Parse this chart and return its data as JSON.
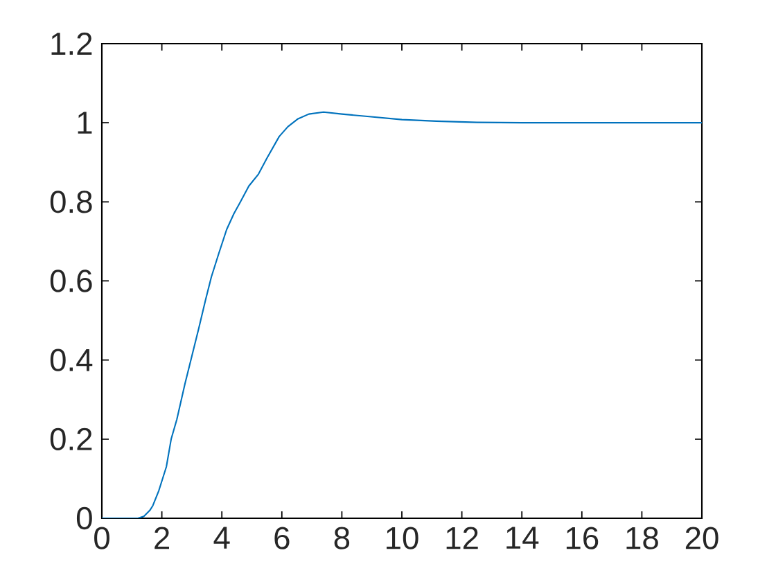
{
  "chart_data": {
    "type": "line",
    "x": [
      0,
      0.5,
      1.0,
      1.2,
      1.4,
      1.6,
      1.7,
      1.9,
      2.15,
      2.31,
      2.5,
      2.77,
      3.0,
      3.23,
      3.45,
      3.65,
      3.9,
      4.16,
      4.4,
      4.62,
      4.9,
      5.22,
      5.5,
      5.91,
      6.2,
      6.54,
      6.9,
      7.39,
      8.0,
      8.85,
      10.0,
      11.15,
      12.5,
      14,
      16,
      18,
      20
    ],
    "values": [
      0,
      0,
      0,
      0,
      0.005,
      0.02,
      0.032,
      0.07,
      0.13,
      0.2,
      0.25,
      0.34,
      0.41,
      0.48,
      0.55,
      0.61,
      0.67,
      0.73,
      0.77,
      0.8,
      0.84,
      0.87,
      0.91,
      0.965,
      0.99,
      1.01,
      1.022,
      1.027,
      1.022,
      1.016,
      1.008,
      1.004,
      1.001,
      1.0,
      1.0,
      1.0,
      1.0
    ],
    "color": "#0072bd",
    "xlim": [
      0,
      20
    ],
    "ylim": [
      0,
      1.2
    ],
    "xticks": [
      0,
      2,
      4,
      6,
      8,
      10,
      12,
      14,
      16,
      18,
      20
    ],
    "yticks": [
      0,
      0.2,
      0.4,
      0.6,
      0.8,
      1,
      1.2
    ],
    "grid": false,
    "marker": "none",
    "line_style": "solid"
  }
}
